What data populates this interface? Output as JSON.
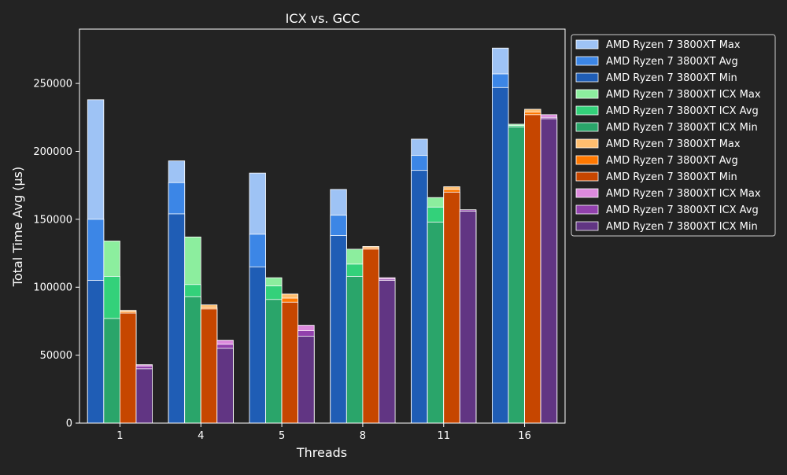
{
  "chart_data": {
    "type": "bar",
    "title": "ICX vs. GCC",
    "xlabel": "Threads",
    "ylabel": "Total Time Avg (µs)",
    "categories": [
      "1",
      "4",
      "5",
      "8",
      "11",
      "16"
    ],
    "ylim": [
      0,
      290000
    ],
    "yticks": [
      0,
      50000,
      100000,
      150000,
      200000,
      250000
    ],
    "grid": false,
    "legend_position": "top-right",
    "groups": [
      {
        "colors": {
          "max": "#9ec3f5",
          "avg": "#3c86e6",
          "min": "#1f5db5"
        },
        "series": [
          {
            "name": "AMD Ryzen 7 3800XT Max",
            "stat": "max",
            "values": [
              238000,
              193000,
              184000,
              172000,
              209000,
              276000
            ]
          },
          {
            "name": "AMD Ryzen 7 3800XT Avg",
            "stat": "avg",
            "values": [
              150000,
              177000,
              139000,
              153000,
              197000,
              257000
            ]
          },
          {
            "name": "AMD Ryzen 7 3800XT Min",
            "stat": "min",
            "values": [
              105000,
              154000,
              115000,
              138000,
              186000,
              247000
            ]
          }
        ]
      },
      {
        "colors": {
          "max": "#8cee9e",
          "avg": "#33d17a",
          "min": "#2aa56a"
        },
        "series": [
          {
            "name": "AMD Ryzen 7 3800XT ICX Max",
            "stat": "max",
            "values": [
              134000,
              137000,
              107000,
              128000,
              166000,
              220000
            ]
          },
          {
            "name": "AMD Ryzen 7 3800XT ICX Avg",
            "stat": "avg",
            "values": [
              108000,
              102000,
              101000,
              117000,
              159000,
              219000
            ]
          },
          {
            "name": "AMD Ryzen 7 3800XT ICX Min",
            "stat": "min",
            "values": [
              77000,
              93000,
              91000,
              108000,
              148000,
              218000
            ]
          }
        ]
      },
      {
        "colors": {
          "max": "#ffbe6f",
          "avg": "#ff7800",
          "min": "#c64600"
        },
        "series": [
          {
            "name": "AMD Ryzen 7 3800XT Max",
            "stat": "max",
            "values": [
              83000,
              87000,
              95000,
              130000,
              174000,
              231000
            ]
          },
          {
            "name": "AMD Ryzen 7 3800XT Avg",
            "stat": "avg",
            "values": [
              82000,
              85000,
              92000,
              129000,
              172000,
              229000
            ]
          },
          {
            "name": "AMD Ryzen 7 3800XT Min",
            "stat": "min",
            "values": [
              81000,
              84000,
              89000,
              128000,
              170000,
              227000
            ]
          }
        ]
      },
      {
        "colors": {
          "max": "#dc8add",
          "avg": "#9141ac",
          "min": "#613583"
        },
        "series": [
          {
            "name": "AMD Ryzen 7 3800XT ICX Max",
            "stat": "max",
            "values": [
              43000,
              61000,
              72000,
              107000,
              157000,
              227000
            ]
          },
          {
            "name": "AMD Ryzen 7 3800XT ICX Avg",
            "stat": "avg",
            "values": [
              42000,
              58000,
              68000,
              106000,
              157000,
              225000
            ]
          },
          {
            "name": "AMD Ryzen 7 3800XT ICX Min",
            "stat": "min",
            "values": [
              40000,
              55000,
              64000,
              105000,
              156000,
              224000
            ]
          }
        ]
      }
    ]
  }
}
